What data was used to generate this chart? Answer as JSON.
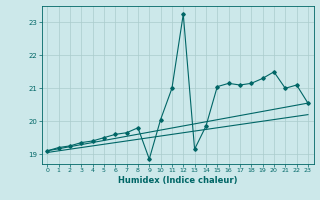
{
  "xlabel": "Humidex (Indice chaleur)",
  "background_color": "#cce8ea",
  "grid_color": "#aacccc",
  "line_color": "#006666",
  "xlim": [
    -0.5,
    23.5
  ],
  "ylim": [
    18.7,
    23.5
  ],
  "yticks": [
    19,
    20,
    21,
    22,
    23
  ],
  "xticks": [
    0,
    1,
    2,
    3,
    4,
    5,
    6,
    7,
    8,
    9,
    10,
    11,
    12,
    13,
    14,
    15,
    16,
    17,
    18,
    19,
    20,
    21,
    22,
    23
  ],
  "series1_x": [
    0,
    1,
    2,
    3,
    4,
    5,
    6,
    7,
    8,
    9,
    10,
    11,
    12,
    13,
    14,
    15,
    16,
    17,
    18,
    19,
    20,
    21,
    22,
    23
  ],
  "series1_y": [
    19.1,
    19.2,
    19.25,
    19.35,
    19.4,
    19.5,
    19.6,
    19.65,
    19.8,
    18.85,
    20.05,
    21.0,
    23.25,
    19.15,
    19.85,
    21.05,
    21.15,
    21.1,
    21.15,
    21.3,
    21.5,
    21.0,
    21.1,
    20.55
  ],
  "series2_x": [
    0,
    23
  ],
  "series2_y": [
    19.1,
    20.55
  ],
  "series3_x": [
    0,
    23
  ],
  "series3_y": [
    19.05,
    20.2
  ]
}
